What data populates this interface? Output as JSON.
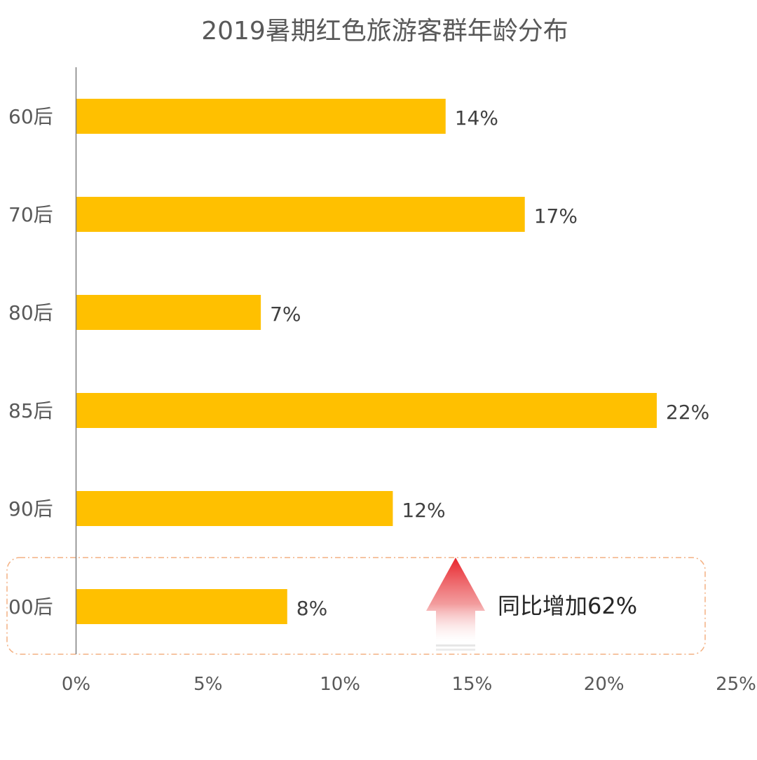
{
  "chart_data": {
    "type": "bar",
    "orientation": "horizontal",
    "title": "2019暑期红色旅游客群年龄分布",
    "categories": [
      "60后",
      "70后",
      "80后",
      "85后",
      "90后",
      "00后"
    ],
    "values": [
      14,
      17,
      7,
      22,
      12,
      8
    ],
    "value_labels": [
      "14%",
      "17%",
      "7%",
      "22%",
      "12%",
      "8%"
    ],
    "xlim": [
      0,
      25
    ],
    "xticks": [
      0,
      5,
      10,
      15,
      20,
      25
    ],
    "xtick_labels": [
      "0%",
      "5%",
      "10%",
      "15%",
      "20%",
      "25%"
    ],
    "grid": false,
    "legend": "none",
    "bar_color": "#FFC000",
    "annotation": {
      "text": "同比增加62%",
      "target_category": "00后",
      "arrow_color": "#E8232A",
      "box_color": "#F4B183"
    }
  }
}
